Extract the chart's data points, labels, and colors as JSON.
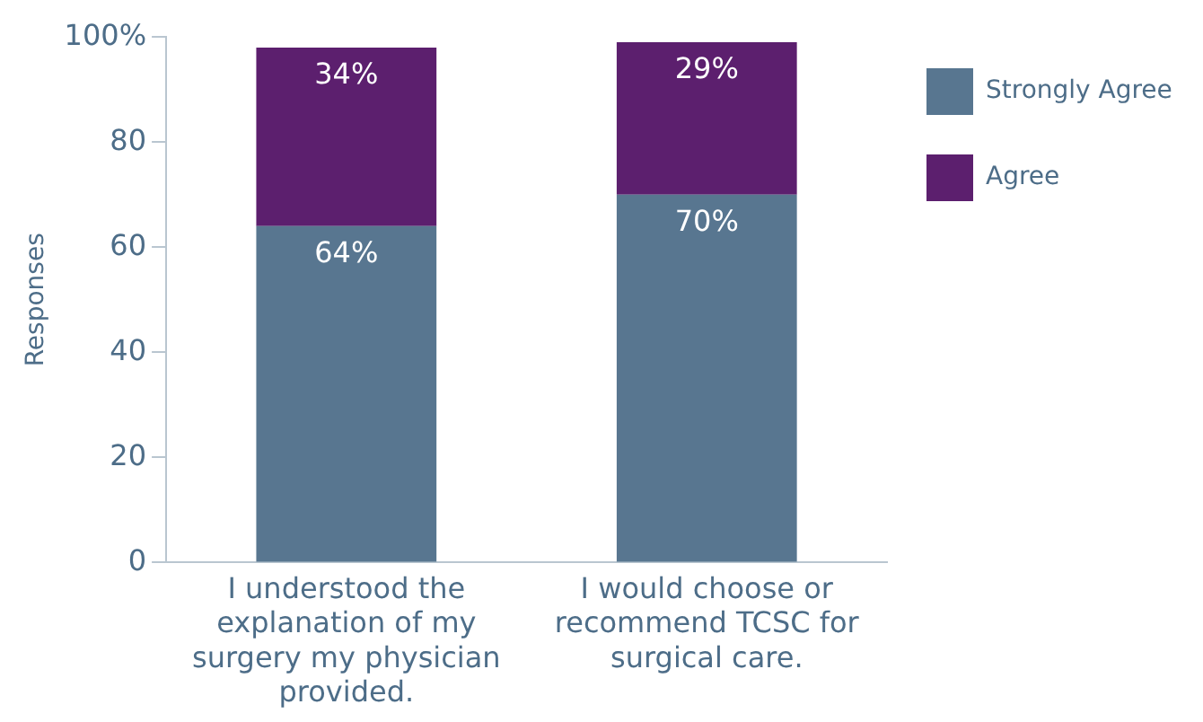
{
  "chart_data": {
    "type": "bar",
    "stacked": true,
    "ylabel": "Responses",
    "categories": [
      "I understood the explanation of my surgery my physician provided.",
      "I would choose or recommend TCSC for surgical care."
    ],
    "series": [
      {
        "name": "Strongly Agree",
        "color": "#587690",
        "values": [
          64,
          70
        ],
        "value_labels": [
          "64%",
          "70%"
        ]
      },
      {
        "name": "Agree",
        "color": "#5c1f6e",
        "values": [
          34,
          29
        ],
        "value_labels": [
          "34%",
          "29%"
        ]
      }
    ],
    "ylim": [
      0,
      100
    ],
    "yticks": [
      0,
      20,
      40,
      60,
      80,
      {
        "value": 100,
        "label": "100%"
      }
    ],
    "grid": false,
    "legend": "right"
  }
}
